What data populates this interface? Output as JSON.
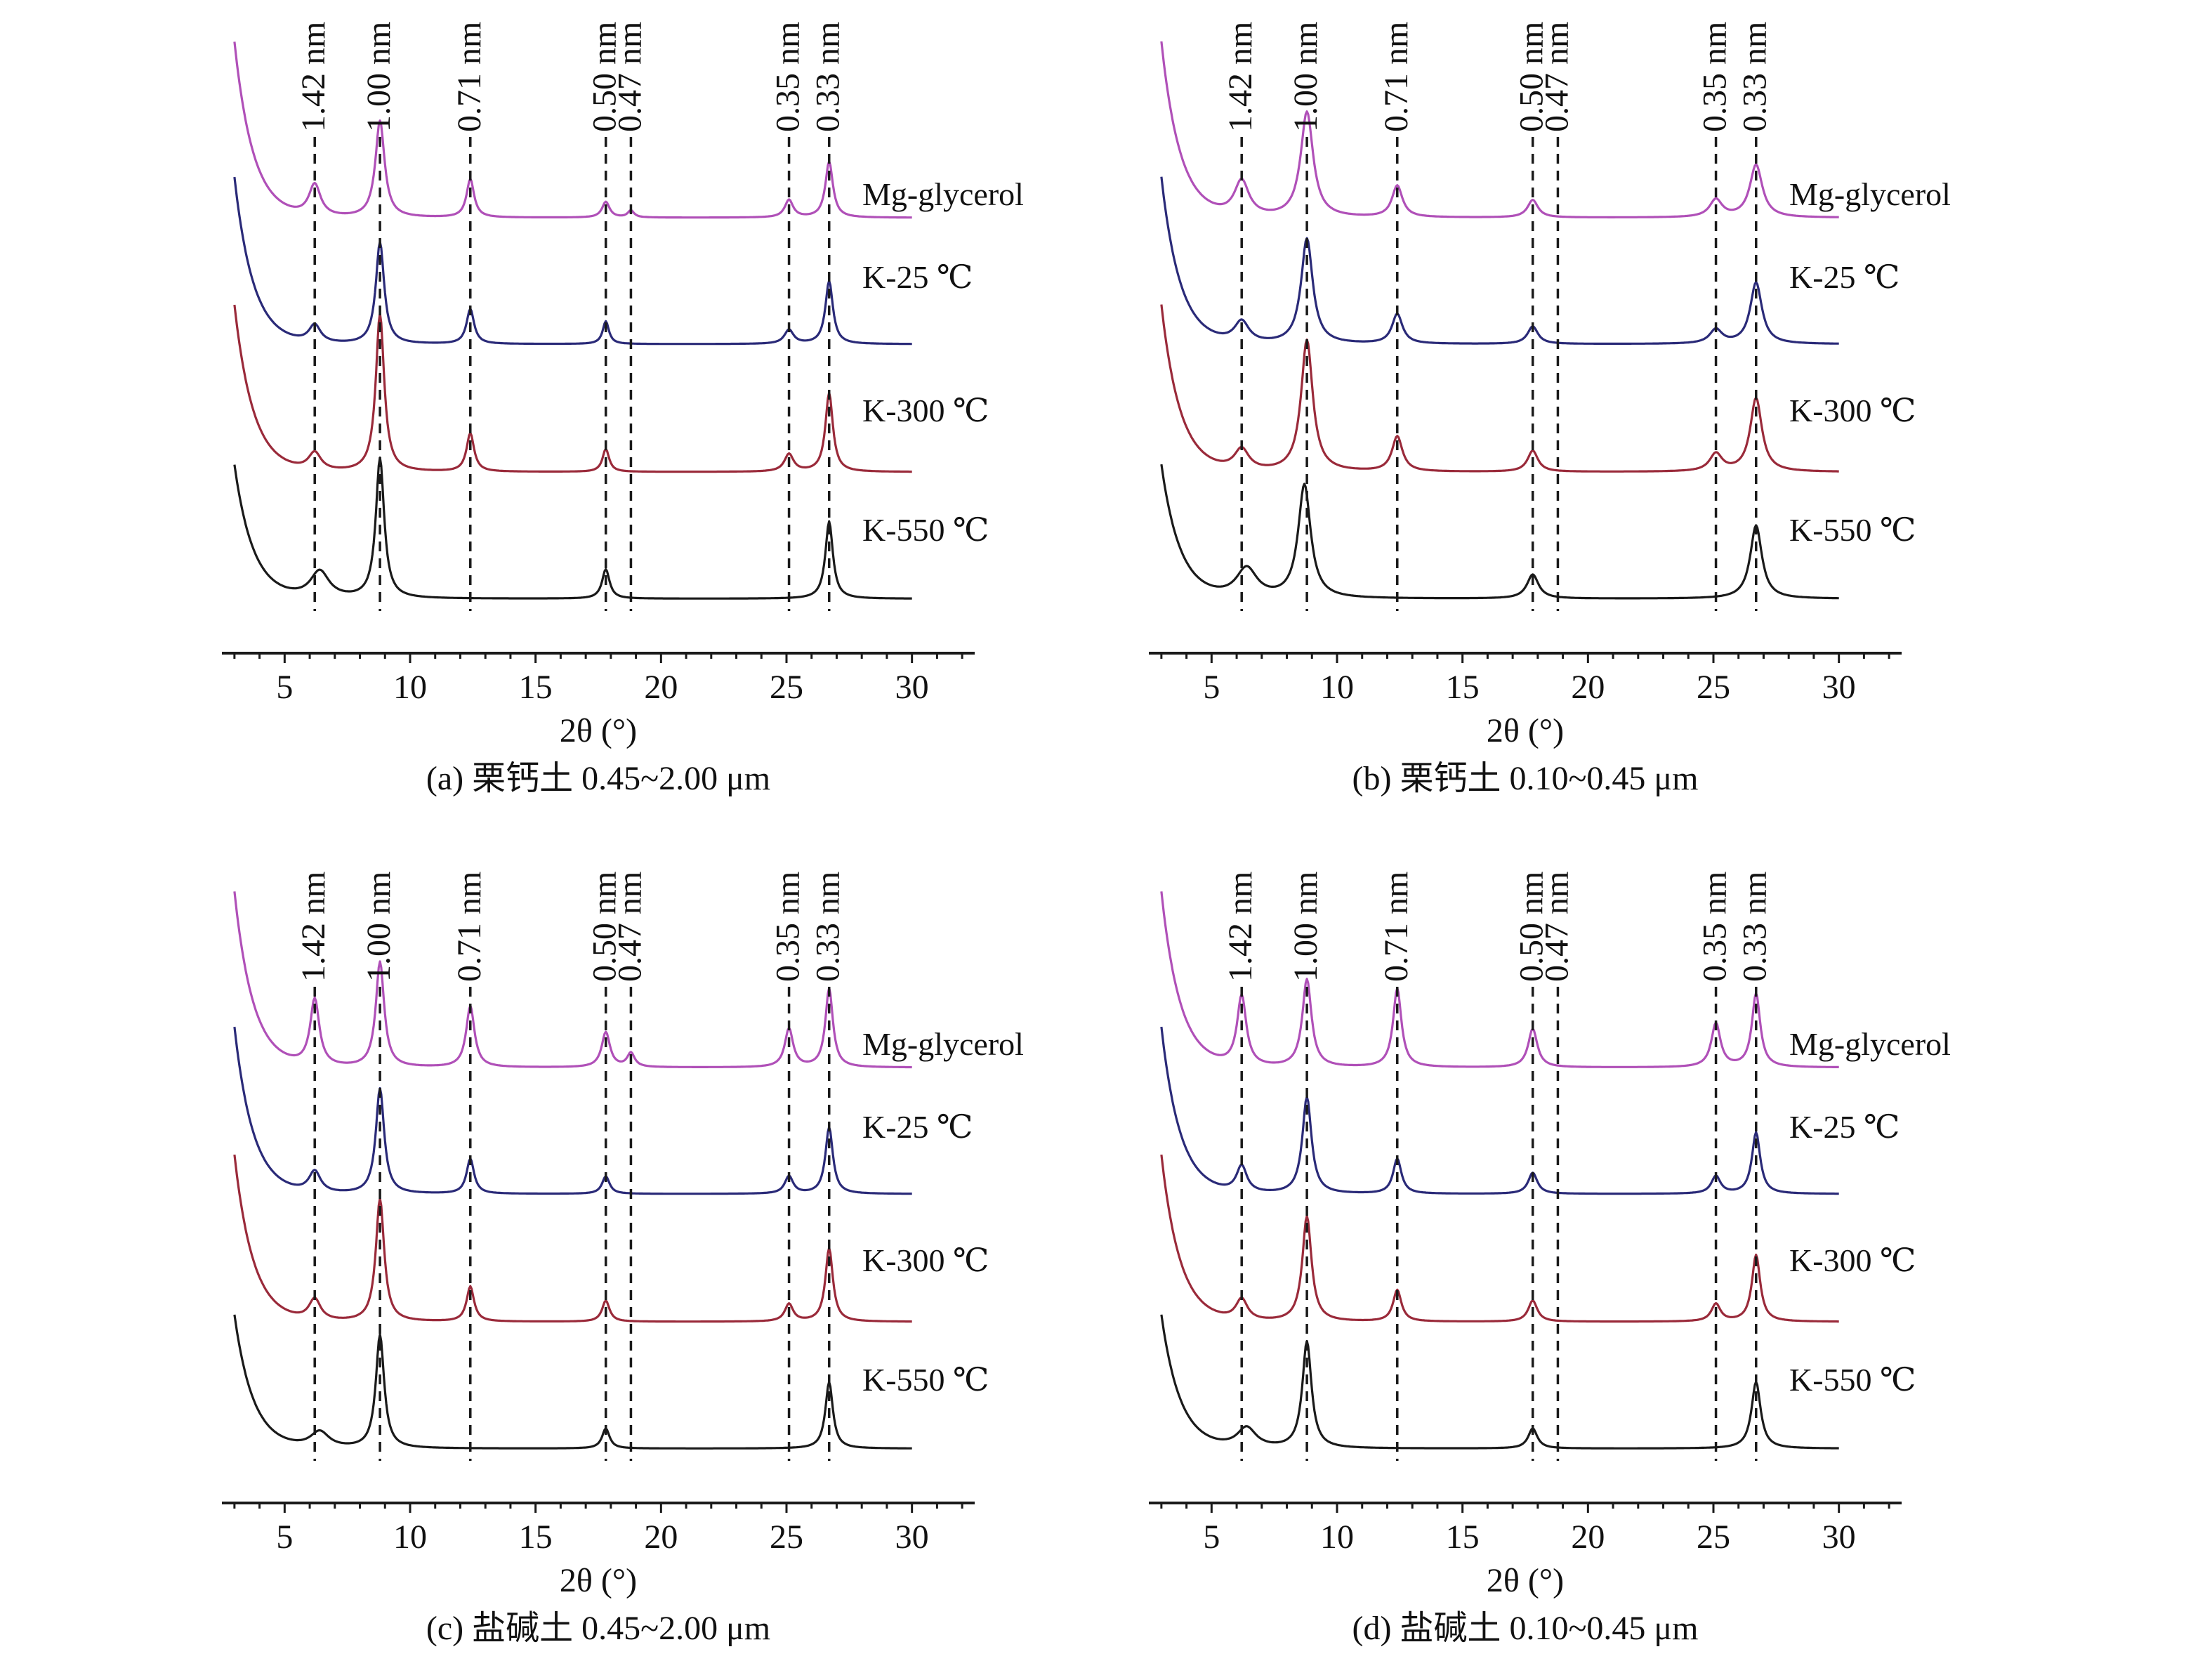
{
  "figure": {
    "x_axis_label": "2θ (°)",
    "x_ticks": [
      5,
      10,
      15,
      20,
      25,
      30
    ],
    "x_range": [
      2.5,
      32.5
    ],
    "peak_labels": [
      {
        "label": "1.42 nm",
        "x": 6.2
      },
      {
        "label": "1.00 nm",
        "x": 8.8
      },
      {
        "label": "0.71 nm",
        "x": 12.4
      },
      {
        "label": "0.50 nm",
        "x": 17.8
      },
      {
        "label": "0.47 nm",
        "x": 18.8
      },
      {
        "label": "0.35 nm",
        "x": 25.1
      },
      {
        "label": "0.33 nm",
        "x": 26.7
      }
    ],
    "series_colors": {
      "Mg-glycerol": "#b050b8",
      "K-25 ℃": "#2a2a78",
      "K-300 ℃": "#9a2a3a",
      "K-550 ℃": "#1a1a1a"
    }
  },
  "chart_data": [
    {
      "type": "line",
      "panel": "a",
      "caption": "(a) 栗钙土 0.45~2.00 μm",
      "xlabel": "2θ (°)",
      "ylabel": "",
      "xlim": [
        2.5,
        32.5
      ],
      "x_ticks": [
        5,
        10,
        15,
        20,
        25,
        30
      ],
      "series": [
        {
          "name": "Mg-glycerol",
          "color": "#b050b8",
          "start": 1.0,
          "baseline": 0.08,
          "peaks": [
            [
              6.2,
              0.18,
              0.28
            ],
            [
              8.8,
              0.55,
              0.22
            ],
            [
              12.4,
              0.22,
              0.18
            ],
            [
              17.8,
              0.09,
              0.18
            ],
            [
              18.8,
              0.04,
              0.15
            ],
            [
              25.1,
              0.1,
              0.2
            ],
            [
              26.7,
              0.32,
              0.18
            ]
          ]
        },
        {
          "name": "K-25 ℃",
          "color": "#2a2a78",
          "start": 0.95,
          "baseline": 0.08,
          "peaks": [
            [
              6.2,
              0.1,
              0.28
            ],
            [
              8.8,
              0.58,
              0.2
            ],
            [
              12.4,
              0.2,
              0.18
            ],
            [
              17.8,
              0.13,
              0.15
            ],
            [
              25.1,
              0.08,
              0.22
            ],
            [
              26.7,
              0.36,
              0.18
            ]
          ]
        },
        {
          "name": "K-300 ℃",
          "color": "#9a2a3a",
          "start": 0.95,
          "baseline": 0.08,
          "peaks": [
            [
              6.2,
              0.1,
              0.3
            ],
            [
              8.8,
              0.9,
              0.2
            ],
            [
              12.4,
              0.22,
              0.18
            ],
            [
              17.8,
              0.13,
              0.16
            ],
            [
              25.1,
              0.1,
              0.22
            ],
            [
              26.7,
              0.45,
              0.18
            ]
          ]
        },
        {
          "name": "K-550 ℃",
          "color": "#1a1a1a",
          "start": 1.0,
          "baseline": 0.05,
          "peaks": [
            [
              6.4,
              0.2,
              0.45
            ],
            [
              8.8,
              1.05,
              0.2
            ],
            [
              17.8,
              0.22,
              0.18
            ],
            [
              26.7,
              0.58,
              0.18
            ]
          ]
        }
      ]
    },
    {
      "type": "line",
      "panel": "b",
      "caption": "(b) 栗钙土 0.10~0.45 μm",
      "xlabel": "2θ (°)",
      "ylabel": "",
      "xlim": [
        2.5,
        32.5
      ],
      "x_ticks": [
        5,
        10,
        15,
        20,
        25,
        30
      ],
      "series": [
        {
          "name": "Mg-glycerol",
          "color": "#b050b8",
          "start": 1.0,
          "baseline": 0.08,
          "peaks": [
            [
              6.2,
              0.2,
              0.35
            ],
            [
              8.8,
              0.6,
              0.3
            ],
            [
              12.4,
              0.18,
              0.25
            ],
            [
              17.8,
              0.1,
              0.25
            ],
            [
              25.1,
              0.1,
              0.3
            ],
            [
              26.7,
              0.3,
              0.3
            ]
          ]
        },
        {
          "name": "K-25 ℃",
          "color": "#2a2a78",
          "start": 0.95,
          "baseline": 0.08,
          "peaks": [
            [
              6.2,
              0.12,
              0.35
            ],
            [
              8.8,
              0.6,
              0.28
            ],
            [
              12.4,
              0.17,
              0.25
            ],
            [
              17.8,
              0.1,
              0.25
            ],
            [
              25.1,
              0.08,
              0.3
            ],
            [
              26.7,
              0.35,
              0.28
            ]
          ]
        },
        {
          "name": "K-300 ℃",
          "color": "#9a2a3a",
          "start": 0.95,
          "baseline": 0.08,
          "peaks": [
            [
              6.2,
              0.12,
              0.35
            ],
            [
              8.8,
              0.75,
              0.28
            ],
            [
              12.4,
              0.2,
              0.25
            ],
            [
              17.8,
              0.12,
              0.25
            ],
            [
              25.1,
              0.1,
              0.3
            ],
            [
              26.7,
              0.42,
              0.28
            ]
          ]
        },
        {
          "name": "K-550 ℃",
          "color": "#1a1a1a",
          "start": 1.0,
          "baseline": 0.05,
          "peaks": [
            [
              6.4,
              0.22,
              0.5
            ],
            [
              8.7,
              0.85,
              0.3
            ],
            [
              17.8,
              0.18,
              0.28
            ],
            [
              26.7,
              0.55,
              0.28
            ]
          ]
        }
      ]
    },
    {
      "type": "line",
      "panel": "c",
      "caption": "(c) 盐碱土 0.45~2.00 μm",
      "xlabel": "2θ (°)",
      "ylabel": "",
      "xlim": [
        2.5,
        32.5
      ],
      "x_ticks": [
        5,
        10,
        15,
        20,
        25,
        30
      ],
      "series": [
        {
          "name": "Mg-glycerol",
          "color": "#b050b8",
          "start": 1.0,
          "baseline": 0.08,
          "peaks": [
            [
              6.2,
              0.38,
              0.22
            ],
            [
              8.8,
              0.6,
              0.2
            ],
            [
              12.4,
              0.35,
              0.2
            ],
            [
              17.8,
              0.2,
              0.2
            ],
            [
              18.8,
              0.08,
              0.18
            ],
            [
              25.1,
              0.22,
              0.2
            ],
            [
              26.7,
              0.45,
              0.18
            ]
          ]
        },
        {
          "name": "K-25 ℃",
          "color": "#2a2a78",
          "start": 0.95,
          "baseline": 0.08,
          "peaks": [
            [
              6.2,
              0.12,
              0.28
            ],
            [
              8.8,
              0.6,
              0.2
            ],
            [
              12.4,
              0.2,
              0.18
            ],
            [
              17.8,
              0.1,
              0.18
            ],
            [
              25.1,
              0.1,
              0.2
            ],
            [
              26.7,
              0.38,
              0.18
            ]
          ]
        },
        {
          "name": "K-300 ℃",
          "color": "#9a2a3a",
          "start": 0.95,
          "baseline": 0.08,
          "peaks": [
            [
              6.2,
              0.12,
              0.28
            ],
            [
              8.8,
              0.7,
              0.2
            ],
            [
              12.4,
              0.2,
              0.18
            ],
            [
              17.8,
              0.12,
              0.18
            ],
            [
              25.1,
              0.1,
              0.2
            ],
            [
              26.7,
              0.42,
              0.18
            ]
          ]
        },
        {
          "name": "K-550 ℃",
          "color": "#1a1a1a",
          "start": 1.0,
          "baseline": 0.05,
          "peaks": [
            [
              6.4,
              0.12,
              0.45
            ],
            [
              8.8,
              0.85,
              0.2
            ],
            [
              17.8,
              0.15,
              0.18
            ],
            [
              26.7,
              0.5,
              0.18
            ]
          ]
        }
      ]
    },
    {
      "type": "line",
      "panel": "d",
      "caption": "(d) 盐碱土 0.10~0.45 μm",
      "xlabel": "2θ (°)",
      "ylabel": "",
      "xlim": [
        2.5,
        32.5
      ],
      "x_ticks": [
        5,
        10,
        15,
        20,
        25,
        30
      ],
      "series": [
        {
          "name": "Mg-glycerol",
          "color": "#b050b8",
          "start": 1.0,
          "baseline": 0.08,
          "peaks": [
            [
              6.2,
              0.4,
              0.22
            ],
            [
              8.8,
              0.5,
              0.22
            ],
            [
              12.4,
              0.45,
              0.2
            ],
            [
              17.8,
              0.22,
              0.22
            ],
            [
              25.1,
              0.25,
              0.22
            ],
            [
              26.7,
              0.42,
              0.2
            ]
          ]
        },
        {
          "name": "K-25 ℃",
          "color": "#2a2a78",
          "start": 0.95,
          "baseline": 0.08,
          "peaks": [
            [
              6.2,
              0.15,
              0.25
            ],
            [
              8.8,
              0.55,
              0.22
            ],
            [
              12.4,
              0.2,
              0.2
            ],
            [
              17.8,
              0.12,
              0.22
            ],
            [
              25.1,
              0.1,
              0.22
            ],
            [
              26.7,
              0.35,
              0.2
            ]
          ]
        },
        {
          "name": "K-300 ℃",
          "color": "#9a2a3a",
          "start": 0.95,
          "baseline": 0.08,
          "peaks": [
            [
              6.2,
              0.12,
              0.28
            ],
            [
              8.8,
              0.6,
              0.22
            ],
            [
              12.4,
              0.18,
              0.2
            ],
            [
              17.8,
              0.12,
              0.22
            ],
            [
              25.1,
              0.1,
              0.22
            ],
            [
              26.7,
              0.38,
              0.2
            ]
          ]
        },
        {
          "name": "K-550 ℃",
          "color": "#1a1a1a",
          "start": 1.0,
          "baseline": 0.05,
          "peaks": [
            [
              6.4,
              0.15,
              0.45
            ],
            [
              8.8,
              0.8,
              0.22
            ],
            [
              17.8,
              0.15,
              0.22
            ],
            [
              26.7,
              0.5,
              0.22
            ]
          ]
        }
      ]
    }
  ]
}
